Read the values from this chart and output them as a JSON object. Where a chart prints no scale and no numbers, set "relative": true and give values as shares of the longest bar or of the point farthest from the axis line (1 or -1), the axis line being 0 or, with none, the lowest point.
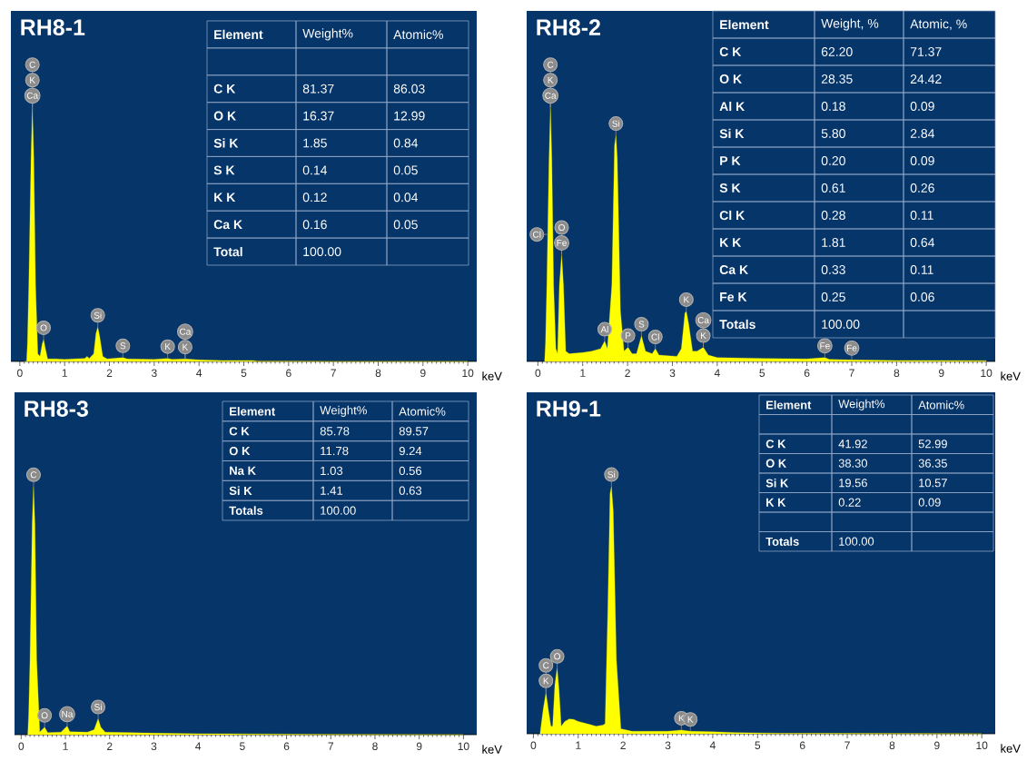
{
  "chart_data": [
    {
      "type": "area",
      "title": "RH8-1",
      "xlabel": "keV",
      "relative": true,
      "xlim": [
        -0.2,
        10.2
      ],
      "xticks": [
        0,
        1,
        2,
        3,
        4,
        5,
        6,
        7,
        8,
        9,
        10
      ],
      "tick_labels": "x",
      "x": [
        0.1,
        0.15,
        0.17,
        0.2,
        0.25,
        0.28,
        0.31,
        0.35,
        0.4,
        0.45,
        0.5,
        0.53,
        0.57,
        0.62,
        0.8,
        1.0,
        1.2,
        1.45,
        1.5,
        1.55,
        1.65,
        1.7,
        1.74,
        1.78,
        1.85,
        1.95,
        2.3,
        2.4,
        3.0,
        3.3,
        3.4,
        3.69,
        4.0,
        4.5,
        5.2,
        5.3,
        6.0,
        7.0,
        10.0
      ],
      "series": [
        {
          "color": "#ffff00",
          "values": [
            0,
            0,
            0.07,
            0.3,
            0.8,
            1.0,
            0.8,
            0.3,
            0.03,
            0.02,
            0.07,
            0.086,
            0.05,
            0.01,
            0.01,
            0.008,
            0.01,
            0.012,
            0.02,
            0.012,
            0.03,
            0.11,
            0.135,
            0.1,
            0.02,
            0.01,
            0.015,
            0.01,
            0.008,
            0.012,
            0.008,
            0.01,
            0.006,
            0.004,
            0.004,
            0.001,
            0.001,
            0,
            0
          ]
        }
      ],
      "annotations": [
        "Element",
        "Weight%",
        "Atomic%",
        null,
        null,
        null,
        "C K",
        "81.37",
        "86.03",
        "O K",
        "16.37",
        "12.99",
        "Si K",
        "1.85",
        "0.84",
        "S K",
        "0.14",
        "0.05",
        "K K",
        "0.12",
        "0.04",
        "Ca K",
        "0.16",
        "0.05",
        "Total",
        "100.00",
        null,
        {
          "text": "C",
          "x": 0.28,
          "y": 1.0
        },
        {
          "text": "K",
          "x": 0.28,
          "y": 1.0
        },
        {
          "text": "Ca",
          "x": 0.28,
          "y": 1.0
        },
        {
          "text": "O",
          "x": 0.53,
          "y": 0.086
        },
        {
          "text": "Si",
          "x": 1.74,
          "y": 0.135
        },
        {
          "text": "S",
          "x": 2.3,
          "y": 0.015
        },
        {
          "text": "K",
          "x": 3.3,
          "y": 0.012
        },
        {
          "text": "Ca",
          "x": 3.69,
          "y": 0.01
        },
        {
          "text": "K",
          "x": 3.69,
          "y": 0.01
        }
      ]
    },
    {
      "type": "area",
      "title": "RH8-2",
      "xlabel": "keV",
      "relative": true,
      "xlim": [
        -0.25,
        10.2
      ],
      "xticks": [
        0,
        1,
        2,
        3,
        4,
        5,
        6,
        7,
        8,
        9,
        10
      ],
      "tick_labels": "x",
      "x": [
        0.15,
        0.17,
        0.2,
        0.25,
        0.28,
        0.31,
        0.35,
        0.4,
        0.44,
        0.48,
        0.53,
        0.57,
        0.62,
        0.7,
        1.0,
        1.2,
        1.4,
        1.49,
        1.55,
        1.65,
        1.71,
        1.74,
        1.77,
        1.84,
        1.92,
        2.01,
        2.1,
        2.2,
        2.31,
        2.4,
        2.55,
        2.62,
        2.7,
        3.1,
        3.2,
        3.28,
        3.31,
        3.36,
        3.45,
        3.55,
        3.69,
        3.8,
        4.0,
        5.0,
        6.0,
        6.4,
        6.5,
        7.0,
        8.0,
        10.0
      ],
      "series": [
        {
          "color": "#ffff00",
          "values": [
            0,
            0.07,
            0.3,
            0.8,
            1.0,
            0.8,
            0.3,
            0.05,
            0.03,
            0.3,
            0.42,
            0.3,
            0.04,
            0.03,
            0.035,
            0.04,
            0.05,
            0.08,
            0.05,
            0.3,
            0.85,
            0.89,
            0.8,
            0.2,
            0.04,
            0.055,
            0.03,
            0.03,
            0.1,
            0.04,
            0.03,
            0.05,
            0.025,
            0.02,
            0.05,
            0.19,
            0.197,
            0.15,
            0.04,
            0.04,
            0.055,
            0.025,
            0.015,
            0.012,
            0.01,
            0.015,
            0.008,
            0.006,
            0.004,
            0.003
          ]
        }
      ],
      "annotations": [
        "Element",
        "Weight, %",
        "Atomic, %",
        "C K",
        "62.20",
        "71.37",
        "O K",
        "28.35",
        "24.42",
        "Al K",
        "0.18",
        "0.09",
        "Si K",
        "5.80",
        "2.84",
        "P K",
        "0.20",
        "0.09",
        "S K",
        "0.61",
        "0.26",
        "Cl K",
        "0.28",
        "0.11",
        "K K",
        "1.81",
        "0.64",
        "Ca K",
        "0.33",
        "0.11",
        "Fe K",
        "0.25",
        "0.06",
        "Totals",
        "100.00",
        null,
        {
          "text": "C",
          "x": 0.28,
          "y": 1.0
        },
        {
          "text": "K",
          "x": 0.28,
          "y": 1.0
        },
        {
          "text": "Ca",
          "x": 0.28,
          "y": 1.0
        },
        {
          "text": "Cl",
          "x": 0.22,
          "y": 0.5
        },
        {
          "text": "Si",
          "x": 1.74,
          "y": 0.89
        },
        {
          "text": "O",
          "x": 0.53,
          "y": 0.42
        },
        {
          "text": "Fe",
          "x": 0.53,
          "y": 0.42
        },
        {
          "text": "Al",
          "x": 1.49,
          "y": 0.08
        },
        {
          "text": "P",
          "x": 2.01,
          "y": 0.055
        },
        {
          "text": "S",
          "x": 2.31,
          "y": 0.1
        },
        {
          "text": "Cl",
          "x": 2.62,
          "y": 0.05
        },
        {
          "text": "K",
          "x": 3.31,
          "y": 0.197
        },
        {
          "text": "Ca",
          "x": 3.69,
          "y": 0.055
        },
        {
          "text": "K",
          "x": 3.69,
          "y": 0.055
        },
        {
          "text": "Fe",
          "x": 6.4,
          "y": 0.015
        },
        {
          "text": "Fe",
          "x": 7.0,
          "y": 0.006
        }
      ]
    },
    {
      "type": "area",
      "title": "RH8-3",
      "xlabel": "keV",
      "relative": true,
      "xlim": [
        -0.15,
        10.3
      ],
      "xticks": [
        0,
        1,
        2,
        3,
        4,
        5,
        6,
        7,
        8,
        9,
        10
      ],
      "tick_labels": "x",
      "x": [
        0.15,
        0.17,
        0.2,
        0.25,
        0.28,
        0.31,
        0.35,
        0.42,
        0.53,
        0.6,
        0.9,
        1.04,
        1.1,
        1.5,
        1.65,
        1.74,
        1.8,
        1.9,
        2.5,
        3.0,
        4.0,
        5.0,
        6.0,
        7.0,
        10.0
      ],
      "series": [
        {
          "color": "#ffff00",
          "values": [
            0,
            0.08,
            0.3,
            0.85,
            1.0,
            0.85,
            0.3,
            0.01,
            0.03,
            0.008,
            0.01,
            0.035,
            0.012,
            0.01,
            0.02,
            0.064,
            0.03,
            0.01,
            0.008,
            0.006,
            0.004,
            0.003,
            0.002,
            0.001,
            0
          ]
        }
      ],
      "annotations": [
        "Element",
        "Weight%",
        "Atomic%",
        "C K",
        "85.78",
        "89.57",
        "O K",
        "11.78",
        "9.24",
        "Na K",
        "1.03",
        "0.56",
        "Si K",
        "1.41",
        "0.63",
        "Totals",
        "100.00",
        null,
        {
          "text": "C",
          "x": 0.28,
          "y": 1.0
        },
        {
          "text": "O",
          "x": 0.53,
          "y": 0.03
        },
        {
          "text": "Na",
          "x": 1.04,
          "y": 0.035
        },
        {
          "text": "Si",
          "x": 1.74,
          "y": 0.064
        }
      ]
    },
    {
      "type": "area",
      "title": "RH9-1",
      "xlabel": "keV",
      "relative": true,
      "xlim": [
        -0.15,
        10.3
      ],
      "xticks": [
        0,
        1,
        2,
        3,
        4,
        5,
        6,
        7,
        8,
        9,
        10
      ],
      "tick_labels": "x",
      "x": [
        0.15,
        0.17,
        0.22,
        0.28,
        0.33,
        0.39,
        0.43,
        0.48,
        0.53,
        0.57,
        0.62,
        0.7,
        0.8,
        0.9,
        1.0,
        1.2,
        1.4,
        1.55,
        1.6,
        1.66,
        1.71,
        1.74,
        1.78,
        1.85,
        1.95,
        2.2,
        3.0,
        3.3,
        3.5,
        4.0,
        4.5,
        5.5,
        6.2,
        8.2,
        10.0
      ],
      "series": [
        {
          "color": "#ffff00",
          "values": [
            0,
            0.03,
            0.1,
            0.166,
            0.1,
            0.03,
            0.03,
            0.2,
            0.265,
            0.18,
            0.03,
            0.05,
            0.06,
            0.058,
            0.05,
            0.04,
            0.03,
            0.035,
            0.04,
            0.5,
            0.97,
            1.0,
            0.9,
            0.3,
            0.02,
            0.01,
            0.01,
            0.015,
            0.01,
            0.008,
            0.005,
            0.002,
            0.002,
            0.001,
            0
          ]
        }
      ],
      "annotations": [
        "Element",
        "Weight%",
        "Atomic%",
        null,
        null,
        null,
        "C K",
        "41.92",
        "52.99",
        "O K",
        "38.30",
        "36.35",
        "Si K",
        "19.56",
        "10.57",
        "K K",
        "0.22",
        "0.09",
        null,
        null,
        null,
        "Totals",
        "100.00",
        null,
        {
          "text": "Si",
          "x": 1.74,
          "y": 1.0
        },
        {
          "text": "O",
          "x": 0.53,
          "y": 0.265
        },
        {
          "text": "C",
          "x": 0.28,
          "y": 0.166
        },
        {
          "text": "K",
          "x": 0.28,
          "y": 0.166
        },
        {
          "text": "K",
          "x": 3.3,
          "y": 0.015
        },
        {
          "text": "K",
          "x": 3.5,
          "y": 0.01
        }
      ]
    }
  ]
}
